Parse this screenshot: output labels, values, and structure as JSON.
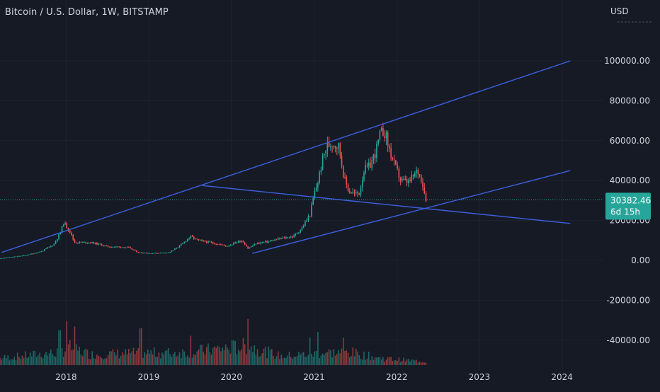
{
  "header": {
    "symbol_title": "Bitcoin / U.S. Dollar, 1W, BITSTAMP",
    "currency_label": "USD"
  },
  "price_tag": {
    "value": "30382.46",
    "countdown": "6d 15h",
    "color": "#26a69a"
  },
  "colors": {
    "background": "#161a25",
    "grid": "#1f2330",
    "up": "#26a69a",
    "down": "#ef5350",
    "trendline": "#3d5fe0",
    "axis_text": "#d1d4dc"
  },
  "chart_data": {
    "type": "candlestick",
    "title": "Bitcoin / U.S. Dollar, 1W, BITSTAMP",
    "y_axis": {
      "unit": "USD",
      "ticks": [
        "100000.00",
        "80000.00",
        "60000.00",
        "40000.00",
        "20000.00",
        "0.00",
        "-20000.00",
        "-40000.00"
      ],
      "tick_values": [
        100000,
        80000,
        60000,
        40000,
        20000,
        0,
        -20000,
        -40000
      ],
      "range": [
        -52000,
        122000
      ]
    },
    "x_axis": {
      "ticks": [
        "2018",
        "2019",
        "2020",
        "2021",
        "2022",
        "2023",
        "2024"
      ],
      "tick_years": [
        2018,
        2019,
        2020,
        2021,
        2022,
        2023,
        2024
      ],
      "range": [
        2017.2,
        2024.5
      ]
    },
    "last_price": 30382.46,
    "price_path": [
      [
        2017.2,
        1000
      ],
      [
        2017.5,
        2500
      ],
      [
        2017.7,
        4500
      ],
      [
        2017.85,
        8000
      ],
      [
        2017.93,
        14000
      ],
      [
        2017.97,
        19000
      ],
      [
        2018.04,
        15000
      ],
      [
        2018.1,
        9000
      ],
      [
        2018.3,
        9000
      ],
      [
        2018.5,
        7000
      ],
      [
        2018.75,
        6500
      ],
      [
        2018.87,
        4000
      ],
      [
        2019.05,
        3600
      ],
      [
        2019.25,
        4000
      ],
      [
        2019.4,
        8000
      ],
      [
        2019.5,
        12000
      ],
      [
        2019.6,
        10000
      ],
      [
        2019.8,
        8500
      ],
      [
        2019.95,
        7200
      ],
      [
        2020.05,
        9000
      ],
      [
        2020.13,
        10000
      ],
      [
        2020.2,
        6000
      ],
      [
        2020.3,
        8500
      ],
      [
        2020.45,
        9500
      ],
      [
        2020.6,
        11000
      ],
      [
        2020.75,
        12000
      ],
      [
        2020.85,
        16000
      ],
      [
        2020.95,
        23000
      ],
      [
        2021.0,
        33000
      ],
      [
        2021.05,
        40000
      ],
      [
        2021.1,
        50000
      ],
      [
        2021.15,
        57000
      ],
      [
        2021.22,
        59000
      ],
      [
        2021.3,
        57000
      ],
      [
        2021.37,
        40000
      ],
      [
        2021.42,
        35000
      ],
      [
        2021.5,
        33000
      ],
      [
        2021.55,
        34000
      ],
      [
        2021.6,
        45000
      ],
      [
        2021.67,
        47000
      ],
      [
        2021.75,
        55000
      ],
      [
        2021.8,
        63000
      ],
      [
        2021.85,
        65000
      ],
      [
        2021.9,
        57000
      ],
      [
        2021.97,
        48000
      ],
      [
        2022.05,
        40000
      ],
      [
        2022.15,
        39000
      ],
      [
        2022.25,
        45000
      ],
      [
        2022.3,
        41000
      ],
      [
        2022.35,
        31000
      ],
      [
        2022.37,
        30382
      ]
    ],
    "volume_path": [
      [
        2017.2,
        0.08
      ],
      [
        2017.85,
        0.14
      ],
      [
        2018.05,
        0.2
      ],
      [
        2018.3,
        0.12
      ],
      [
        2018.9,
        0.14
      ],
      [
        2019.3,
        0.14
      ],
      [
        2019.6,
        0.16
      ],
      [
        2020.2,
        0.22
      ],
      [
        2020.6,
        0.1
      ],
      [
        2021.1,
        0.14
      ],
      [
        2021.4,
        0.15
      ],
      [
        2021.8,
        0.08
      ],
      [
        2022.2,
        0.05
      ],
      [
        2022.37,
        0.04
      ]
    ],
    "volume_spikes": [
      [
        2018.0,
        0.48
      ],
      [
        2017.92,
        0.38
      ],
      [
        2018.1,
        0.42
      ],
      [
        2018.9,
        0.4
      ],
      [
        2019.5,
        0.32
      ],
      [
        2020.2,
        0.5
      ],
      [
        2020.95,
        0.3
      ],
      [
        2021.05,
        0.36
      ],
      [
        2021.35,
        0.3
      ],
      [
        2022.37,
        0.12
      ]
    ],
    "trendlines": [
      {
        "name": "upper-channel",
        "from": [
          2017.22,
          4000
        ],
        "to": [
          2024.1,
          100000
        ]
      },
      {
        "name": "descending-line",
        "from": [
          2019.65,
          37500
        ],
        "to": [
          2024.1,
          18500
        ]
      },
      {
        "name": "lower-channel",
        "from": [
          2020.25,
          3500
        ],
        "to": [
          2024.1,
          45000
        ]
      }
    ]
  }
}
